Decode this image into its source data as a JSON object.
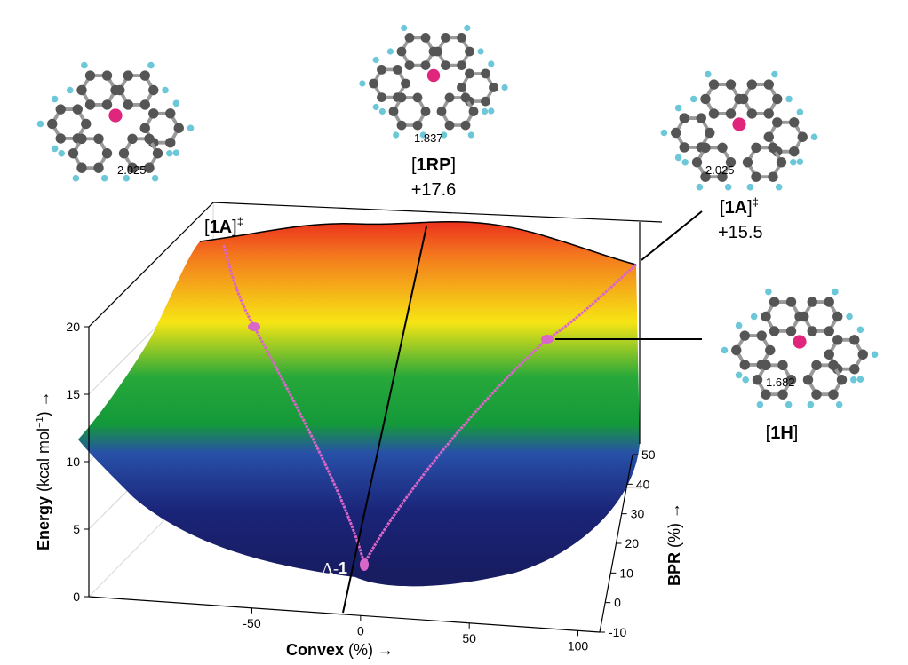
{
  "figure": {
    "energy_axis": {
      "label_bold": "Energy",
      "label_unit": " (kcal mol",
      "label_sup": "−1",
      "label_end": ") →",
      "ticks": [
        0,
        5,
        10,
        15,
        20
      ]
    },
    "convex_axis": {
      "label_bold": "Convex",
      "label_unit": " (%) →",
      "ticks": [
        -50,
        0,
        50,
        100
      ]
    },
    "bpr_axis": {
      "label_bold": "BPR",
      "label_unit": " (%) →",
      "ticks": [
        -10,
        0,
        10,
        20,
        30,
        40,
        50
      ]
    },
    "annotations": {
      "left_ts": {
        "bold": "1A",
        "sup": "‡"
      },
      "rp": {
        "bold": "1RP",
        "energy": "+17.6",
        "distance": "1.837"
      },
      "right_ts": {
        "bold": "1A",
        "sup": "‡",
        "energy": "+15.5",
        "distance": "2.025"
      },
      "left_molecule": {
        "distance": "2.025"
      },
      "h": {
        "bold": "1H",
        "distance": "1.682"
      },
      "minimum": {
        "prefix": "Λ-",
        "bold": "1"
      }
    }
  }
}
